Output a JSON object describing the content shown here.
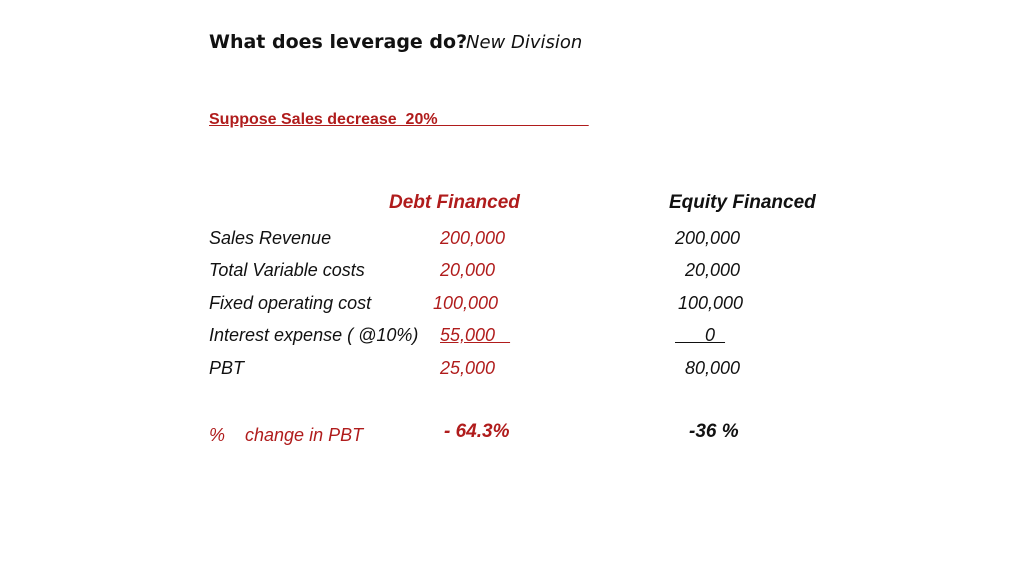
{
  "header": {
    "title": "What does leverage do?",
    "subtitle": "New Division"
  },
  "premise": "Suppose Sales decrease  20%                                  ",
  "columns": {
    "debt": "Debt Financed",
    "equity": "Equity Financed"
  },
  "rows": [
    {
      "label": "Sales Revenue",
      "debt": "200,000",
      "equity": "200,000"
    },
    {
      "label": "Total Variable costs",
      "debt": "20,000",
      "equity": "  20,000"
    },
    {
      "label": "Fixed operating cost",
      "debt": "100,000",
      "equity": "100,000"
    },
    {
      "label": "Interest expense ( @10%)",
      "debt": "55,000   ",
      "equity": "      0  "
    },
    {
      "label": "PBT",
      "debt": "25,000",
      "equity": "  80,000"
    }
  ],
  "pct_change": {
    "label": "%    change in PBT",
    "debt": "- 64.3%",
    "equity": "-36 %"
  },
  "colors": {
    "accent_red": "#b01c1c",
    "text": "#111111"
  }
}
